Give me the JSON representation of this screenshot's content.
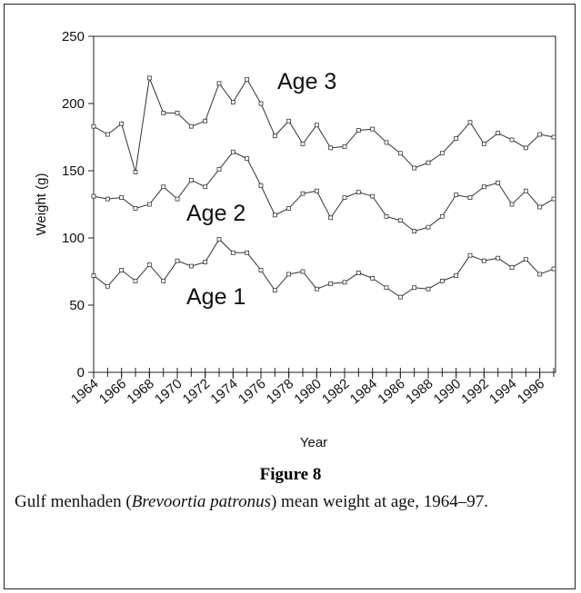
{
  "chart_data": {
    "type": "line",
    "x": [
      1964,
      1965,
      1966,
      1967,
      1968,
      1969,
      1970,
      1971,
      1972,
      1973,
      1974,
      1975,
      1976,
      1977,
      1978,
      1979,
      1980,
      1981,
      1982,
      1983,
      1984,
      1985,
      1986,
      1987,
      1988,
      1989,
      1990,
      1991,
      1992,
      1993,
      1994,
      1995,
      1996,
      1997
    ],
    "series": [
      {
        "color": "#333333",
        "values": [
          183,
          177,
          185,
          149,
          219,
          193,
          193,
          183,
          187,
          215,
          201,
          218,
          200,
          176,
          187,
          170,
          184,
          167,
          168,
          180,
          181,
          171,
          163,
          152,
          156,
          163,
          174,
          186,
          170,
          178,
          173,
          167,
          177,
          175
        ]
      },
      {
        "color": "#333333",
        "values": [
          131,
          129,
          130,
          122,
          125,
          138,
          129,
          143,
          138,
          151,
          164,
          159,
          139,
          117,
          122,
          133,
          135,
          115,
          130,
          134,
          131,
          116,
          113,
          105,
          108,
          116,
          132,
          130,
          138,
          141,
          125,
          135,
          123,
          129
        ]
      },
      {
        "color": "#333333",
        "values": [
          72,
          64,
          76,
          68,
          80,
          68,
          83,
          79,
          82,
          99,
          89,
          89,
          76,
          61,
          73,
          75,
          62,
          66,
          67,
          74,
          70,
          63,
          56,
          63,
          62,
          68,
          72,
          87,
          83,
          85,
          78,
          84,
          73,
          77
        ]
      }
    ],
    "annotations": [
      "Age 3",
      "Age 2",
      "Age 1"
    ],
    "xlabel": "Year",
    "ylabel": "Weight (g)",
    "xlim": [
      1964,
      1997
    ],
    "ylim": [
      0,
      250
    ],
    "xticks": [
      1964,
      1966,
      1968,
      1970,
      1972,
      1974,
      1976,
      1978,
      1980,
      1982,
      1984,
      1986,
      1988,
      1990,
      1992,
      1994,
      1996
    ],
    "yticks": [
      0,
      50,
      100,
      150,
      200,
      250
    ]
  },
  "figure": {
    "label": "Figure 8",
    "caption": [
      "Gulf menhaden (",
      "Brevoortia patronus",
      ") mean weight at age, 1964–97."
    ]
  }
}
